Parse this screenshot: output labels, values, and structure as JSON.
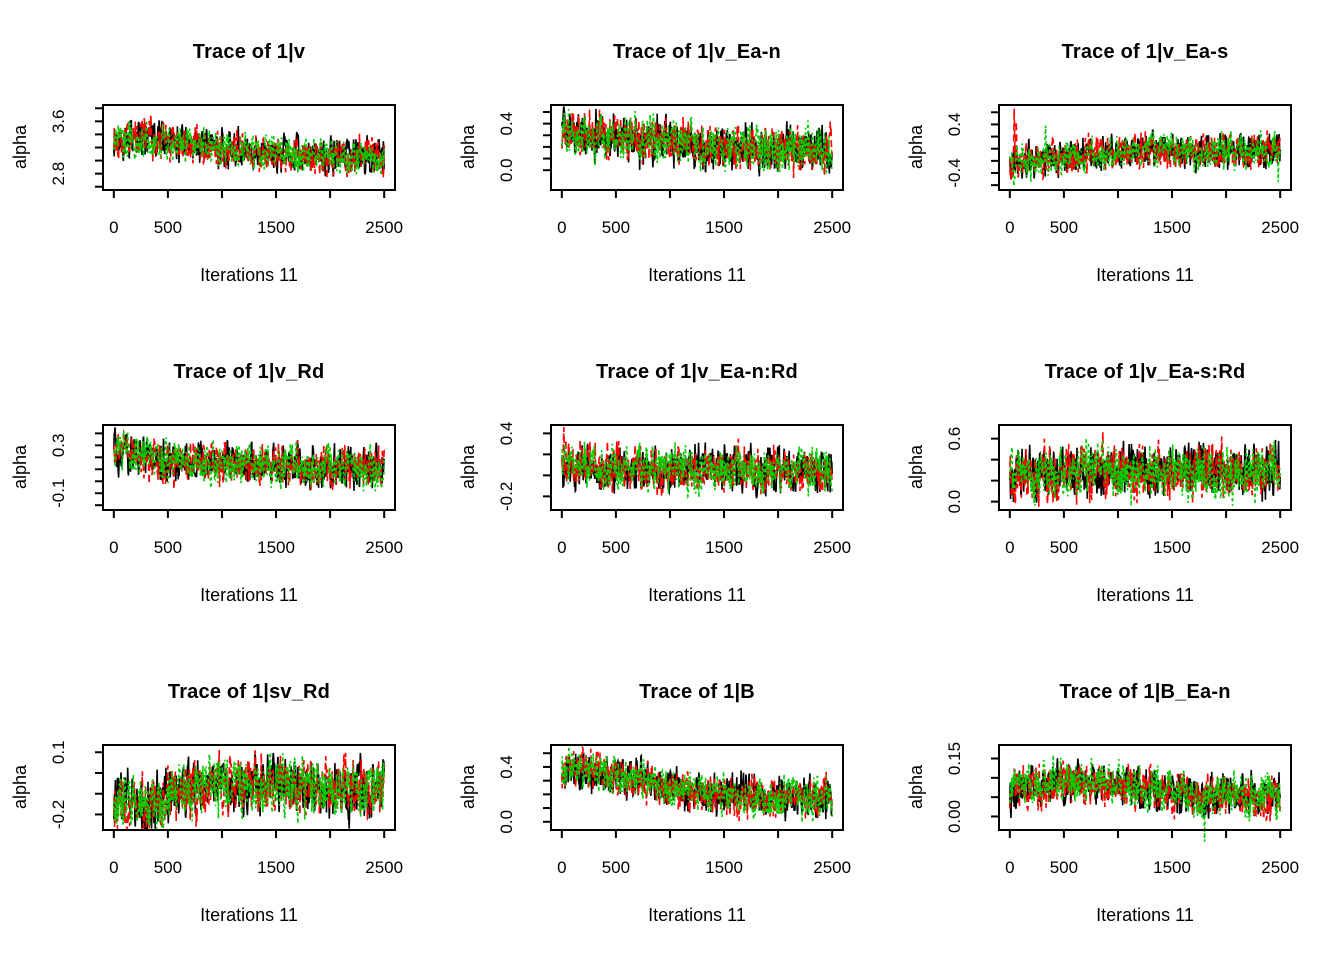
{
  "figure": {
    "background": "#ffffff",
    "box_color": "#000000",
    "text_color": "#000000",
    "x_axis_label": "Iterations 11",
    "y_axis_label": "alpha",
    "xlim": [
      -100,
      2600
    ],
    "x_ticks": [
      0,
      500,
      1000,
      1500,
      2000,
      2500
    ],
    "x_tick_labels": [
      {
        "value": 0,
        "label": "0"
      },
      {
        "value": 500,
        "label": "500"
      },
      {
        "value": 1500,
        "label": "1500"
      },
      {
        "value": 2500,
        "label": "2500"
      }
    ],
    "chains": [
      {
        "name": "chain 1",
        "color": "#000000",
        "dash": ""
      },
      {
        "name": "chain 2",
        "color": "#ff0000",
        "dash": "7 4"
      },
      {
        "name": "chain 3",
        "color": "#00cd00",
        "dash": "3 3"
      }
    ],
    "grid": false,
    "legend": "none"
  },
  "chart_data": [
    {
      "type": "line",
      "title": "Trace of 1|v",
      "xlabel": "Iterations 11",
      "ylabel": "alpha",
      "x_range": [
        0,
        2500
      ],
      "ylim": [
        2.55,
        3.85
      ],
      "y_ticks": [
        2.6,
        2.8,
        3.0,
        3.2,
        3.4,
        3.6,
        3.8
      ],
      "y_tick_labels": [
        {
          "value": 2.8,
          "label": "2.8"
        },
        {
          "value": 3.6,
          "label": "3.6"
        }
      ],
      "trend": [
        [
          0,
          3.32
        ],
        [
          250,
          3.34
        ],
        [
          600,
          3.28
        ],
        [
          1000,
          3.18
        ],
        [
          1400,
          3.1
        ],
        [
          2500,
          3.06
        ]
      ],
      "amplitude": 0.26,
      "spikes": []
    },
    {
      "type": "line",
      "title": "Trace of 1|v_Ea-n",
      "xlabel": "Iterations 11",
      "ylabel": "alpha",
      "x_range": [
        0,
        2500
      ],
      "ylim": [
        -0.17,
        0.56
      ],
      "y_ticks": [
        0.0,
        0.1,
        0.2,
        0.3,
        0.4,
        0.5
      ],
      "y_tick_labels": [
        {
          "value": 0.0,
          "label": "0.0"
        },
        {
          "value": 0.4,
          "label": "0.4"
        }
      ],
      "trend": [
        [
          0,
          0.3
        ],
        [
          300,
          0.29
        ],
        [
          800,
          0.26
        ],
        [
          1500,
          0.2
        ],
        [
          2000,
          0.18
        ],
        [
          2500,
          0.19
        ]
      ],
      "amplitude": 0.19,
      "spikes": []
    },
    {
      "type": "line",
      "title": "Trace of 1|v_Ea-s",
      "xlabel": "Iterations 11",
      "ylabel": "alpha",
      "x_range": [
        0,
        2500
      ],
      "ylim": [
        -0.68,
        0.72
      ],
      "y_ticks": [
        -0.6,
        -0.4,
        -0.2,
        0.0,
        0.2,
        0.4,
        0.6
      ],
      "y_tick_labels": [
        {
          "value": -0.4,
          "label": "-0.4"
        },
        {
          "value": 0.4,
          "label": "0.4"
        }
      ],
      "trend": [
        [
          0,
          -0.3
        ],
        [
          100,
          -0.22
        ],
        [
          500,
          -0.14
        ],
        [
          1000,
          -0.06
        ],
        [
          1400,
          -0.02
        ],
        [
          1900,
          -0.06
        ],
        [
          2500,
          -0.03
        ]
      ],
      "amplitude": 0.27,
      "spikes": [
        {
          "chain": 1,
          "x": 40,
          "value": 0.66
        },
        {
          "chain": 1,
          "x": 60,
          "value": 0.45
        },
        {
          "chain": 0,
          "x": 15,
          "value": -0.5
        },
        {
          "chain": 2,
          "x": 2480,
          "value": -0.55
        },
        {
          "chain": 2,
          "x": 330,
          "value": 0.38
        }
      ]
    },
    {
      "type": "line",
      "title": "Trace of 1|v_Rd",
      "xlabel": "Iterations 11",
      "ylabel": "alpha",
      "x_range": [
        0,
        2500
      ],
      "ylim": [
        -0.24,
        0.47
      ],
      "y_ticks": [
        -0.2,
        -0.1,
        0.0,
        0.1,
        0.2,
        0.3,
        0.4
      ],
      "y_tick_labels": [
        {
          "value": -0.1,
          "label": "-0.1"
        },
        {
          "value": 0.3,
          "label": "0.3"
        }
      ],
      "trend": [
        [
          0,
          0.24
        ],
        [
          150,
          0.27
        ],
        [
          450,
          0.17
        ],
        [
          900,
          0.15
        ],
        [
          1600,
          0.13
        ],
        [
          2500,
          0.11
        ]
      ],
      "amplitude": 0.16,
      "spikes": [
        {
          "chain": 0,
          "x": 12,
          "value": 0.45
        }
      ]
    },
    {
      "type": "line",
      "title": "Trace of 1|v_Ea-n:Rd",
      "xlabel": "Iterations 11",
      "ylabel": "alpha",
      "x_range": [
        0,
        2500
      ],
      "ylim": [
        -0.33,
        0.48
      ],
      "y_ticks": [
        -0.2,
        0.0,
        0.2,
        0.4
      ],
      "y_tick_labels": [
        {
          "value": -0.2,
          "label": "-0.2"
        },
        {
          "value": 0.4,
          "label": "0.4"
        }
      ],
      "trend": [
        [
          0,
          0.1
        ],
        [
          400,
          0.07
        ],
        [
          1200,
          0.06
        ],
        [
          2500,
          0.03
        ]
      ],
      "amplitude": 0.2,
      "spikes": [
        {
          "chain": 1,
          "x": 20,
          "value": 0.46
        },
        {
          "chain": 1,
          "x": 35,
          "value": 0.34
        }
      ]
    },
    {
      "type": "line",
      "title": "Trace of 1|v_Ea-s:Rd",
      "xlabel": "Iterations 11",
      "ylabel": "alpha",
      "x_range": [
        0,
        2500
      ],
      "ylim": [
        -0.08,
        0.73
      ],
      "y_ticks": [
        0.0,
        0.2,
        0.4,
        0.6
      ],
      "y_tick_labels": [
        {
          "value": 0.0,
          "label": "0.0"
        },
        {
          "value": 0.6,
          "label": "0.6"
        }
      ],
      "trend": [
        [
          0,
          0.26
        ],
        [
          350,
          0.24
        ],
        [
          700,
          0.31
        ],
        [
          1100,
          0.28
        ],
        [
          1600,
          0.3
        ],
        [
          2100,
          0.28
        ],
        [
          2500,
          0.3
        ]
      ],
      "amplitude": 0.24,
      "spikes": [
        {
          "chain": 1,
          "x": 320,
          "value": 0.6
        },
        {
          "chain": 1,
          "x": 860,
          "value": 0.66
        },
        {
          "chain": 1,
          "x": 1960,
          "value": 0.62
        },
        {
          "chain": 2,
          "x": 2060,
          "value": -0.04
        }
      ]
    },
    {
      "type": "line",
      "title": "Trace of 1|sv_Rd",
      "xlabel": "Iterations 11",
      "ylabel": "alpha",
      "x_range": [
        0,
        2500
      ],
      "ylim": [
        -0.275,
        0.135
      ],
      "y_ticks": [
        -0.2,
        -0.1,
        0.0,
        0.1
      ],
      "y_tick_labels": [
        {
          "value": -0.2,
          "label": "-0.2"
        },
        {
          "value": 0.1,
          "label": "0.1"
        }
      ],
      "trend": [
        [
          0,
          -0.14
        ],
        [
          300,
          -0.15
        ],
        [
          700,
          -0.08
        ],
        [
          1300,
          -0.06
        ],
        [
          2000,
          -0.07
        ],
        [
          2500,
          -0.08
        ]
      ],
      "amplitude": 0.13,
      "spikes": []
    },
    {
      "type": "line",
      "title": "Trace of 1|B",
      "xlabel": "Iterations 11",
      "ylabel": "alpha",
      "x_range": [
        0,
        2500
      ],
      "ylim": [
        -0.06,
        0.56
      ],
      "y_ticks": [
        0.0,
        0.1,
        0.2,
        0.3,
        0.4,
        0.5
      ],
      "y_tick_labels": [
        {
          "value": 0.0,
          "label": "0.0"
        },
        {
          "value": 0.4,
          "label": "0.4"
        }
      ],
      "trend": [
        [
          0,
          0.4
        ],
        [
          250,
          0.38
        ],
        [
          550,
          0.34
        ],
        [
          900,
          0.27
        ],
        [
          1250,
          0.21
        ],
        [
          1600,
          0.19
        ],
        [
          2500,
          0.18
        ]
      ],
      "amplitude": 0.14,
      "spikes": []
    },
    {
      "type": "line",
      "title": "Trace of 1|B_Ea-n",
      "xlabel": "Iterations 11",
      "ylabel": "alpha",
      "x_range": [
        0,
        2500
      ],
      "ylim": [
        -0.035,
        0.185
      ],
      "y_ticks": [
        0.0,
        0.05,
        0.1,
        0.15
      ],
      "y_tick_labels": [
        {
          "value": 0.0,
          "label": "0.00"
        },
        {
          "value": 0.15,
          "label": "0.15"
        }
      ],
      "trend": [
        [
          0,
          0.07
        ],
        [
          400,
          0.09
        ],
        [
          800,
          0.09
        ],
        [
          1300,
          0.07
        ],
        [
          1800,
          0.05
        ],
        [
          2500,
          0.055
        ]
      ],
      "amplitude": 0.053,
      "spikes": [
        {
          "chain": 0,
          "x": 12,
          "value": -0.004
        },
        {
          "chain": 2,
          "x": 1800,
          "value": -0.065
        }
      ]
    }
  ]
}
